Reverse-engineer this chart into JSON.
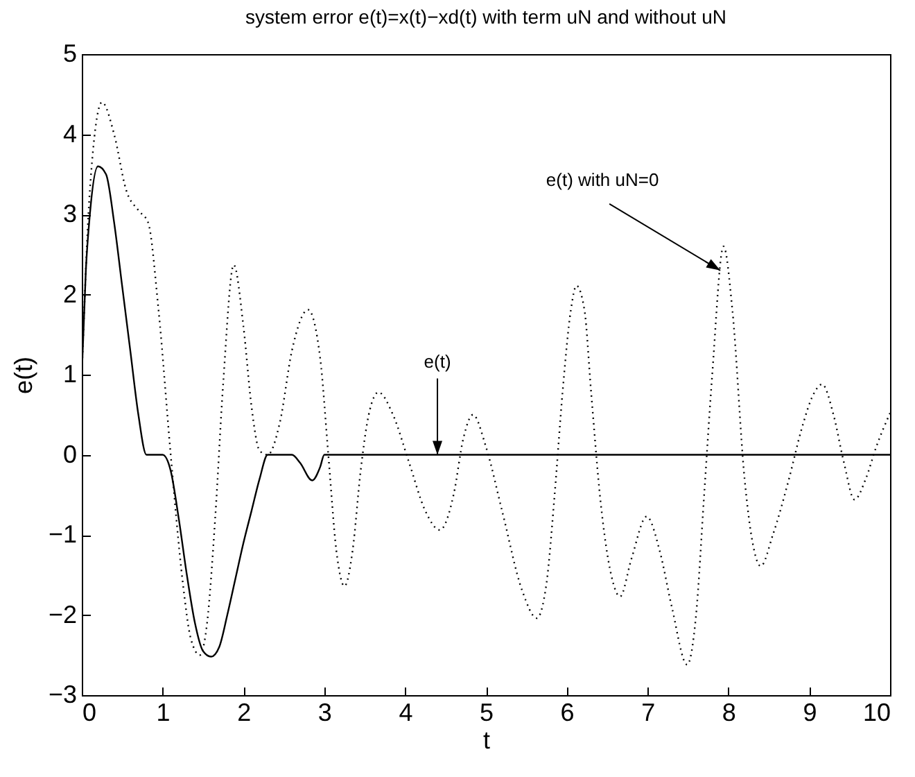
{
  "chart_data": {
    "type": "line",
    "title": "system error e(t)=x(t)−xd(t) with term uN and without uN",
    "xlabel": "t",
    "ylabel": "e(t)",
    "xlim": [
      0,
      10
    ],
    "ylim": [
      -3,
      5
    ],
    "xticks": [
      0,
      1,
      2,
      3,
      4,
      5,
      6,
      7,
      8,
      9,
      10
    ],
    "yticks": [
      -3,
      -2,
      -1,
      0,
      1,
      2,
      3,
      4,
      5
    ],
    "grid": false,
    "series": [
      {
        "color": "#000000",
        "line_style": "solid",
        "x": [
          0,
          0.05,
          0.1,
          0.2,
          0.3,
          0.4,
          0.5,
          0.6,
          0.7,
          0.8,
          1.0,
          1.1,
          1.2,
          1.3,
          1.4,
          1.5,
          1.6,
          1.7,
          1.8,
          1.9,
          2.0,
          2.1,
          2.2,
          2.3,
          2.6,
          2.7,
          2.85,
          2.95,
          3.0,
          10
        ],
        "values": [
          1.0,
          2.3,
          3.0,
          3.6,
          3.5,
          2.9,
          2.1,
          1.3,
          0.5,
          0,
          0,
          -0.2,
          -0.8,
          -1.5,
          -2.1,
          -2.45,
          -2.52,
          -2.4,
          -2.0,
          -1.55,
          -1.1,
          -0.7,
          -0.3,
          0,
          0,
          -0.1,
          -0.32,
          -0.15,
          0,
          0
        ]
      },
      {
        "color": "#000000",
        "line_style": "dotted",
        "x": [
          0,
          0.1,
          0.25,
          0.4,
          0.55,
          0.7,
          0.82,
          0.95,
          1.1,
          1.25,
          1.35,
          1.46,
          1.55,
          1.65,
          1.75,
          1.88,
          2.0,
          2.1,
          2.2,
          2.3,
          2.45,
          2.6,
          2.8,
          2.95,
          3.05,
          3.15,
          3.25,
          3.35,
          3.45,
          3.55,
          3.67,
          3.85,
          4.05,
          4.25,
          4.43,
          4.6,
          4.72,
          4.84,
          5.0,
          5.2,
          5.45,
          5.63,
          5.75,
          5.85,
          5.95,
          6.05,
          6.12,
          6.22,
          6.3,
          6.42,
          6.55,
          6.66,
          6.8,
          6.99,
          7.15,
          7.3,
          7.49,
          7.6,
          7.7,
          7.8,
          7.94,
          8.05,
          8.2,
          8.3,
          8.4,
          8.55,
          8.75,
          8.9,
          9.05,
          9.16,
          9.3,
          9.43,
          9.56,
          9.7,
          9.83,
          10
        ],
        "values": [
          1.0,
          3.3,
          4.4,
          4.0,
          3.3,
          3.05,
          2.9,
          1.8,
          0.0,
          -1.6,
          -2.3,
          -2.5,
          -2.1,
          -0.8,
          0.9,
          2.37,
          1.6,
          0.6,
          0.05,
          0.0,
          0.4,
          1.3,
          1.81,
          1.2,
          0,
          -1.2,
          -1.64,
          -1.2,
          -0.2,
          0.5,
          0.78,
          0.5,
          -0.1,
          -0.7,
          -0.94,
          -0.5,
          0.2,
          0.5,
          0.1,
          -0.7,
          -1.7,
          -2.04,
          -1.6,
          -0.5,
          0.8,
          1.8,
          2.11,
          1.8,
          0.8,
          -0.6,
          -1.5,
          -1.77,
          -1.3,
          -0.77,
          -1.2,
          -1.9,
          -2.62,
          -2.0,
          -0.5,
          1.0,
          2.6,
          1.8,
          -0.3,
          -1.1,
          -1.39,
          -1.0,
          -0.3,
          0.3,
          0.75,
          0.88,
          0.5,
          -0.1,
          -0.56,
          -0.3,
          0.1,
          0.52
        ]
      }
    ],
    "annotations": [
      {
        "text": "e(t)",
        "x": 4.4,
        "y": 0
      },
      {
        "text": "e(t) with uN=0",
        "x": 7.9,
        "y": 2.3
      }
    ]
  }
}
